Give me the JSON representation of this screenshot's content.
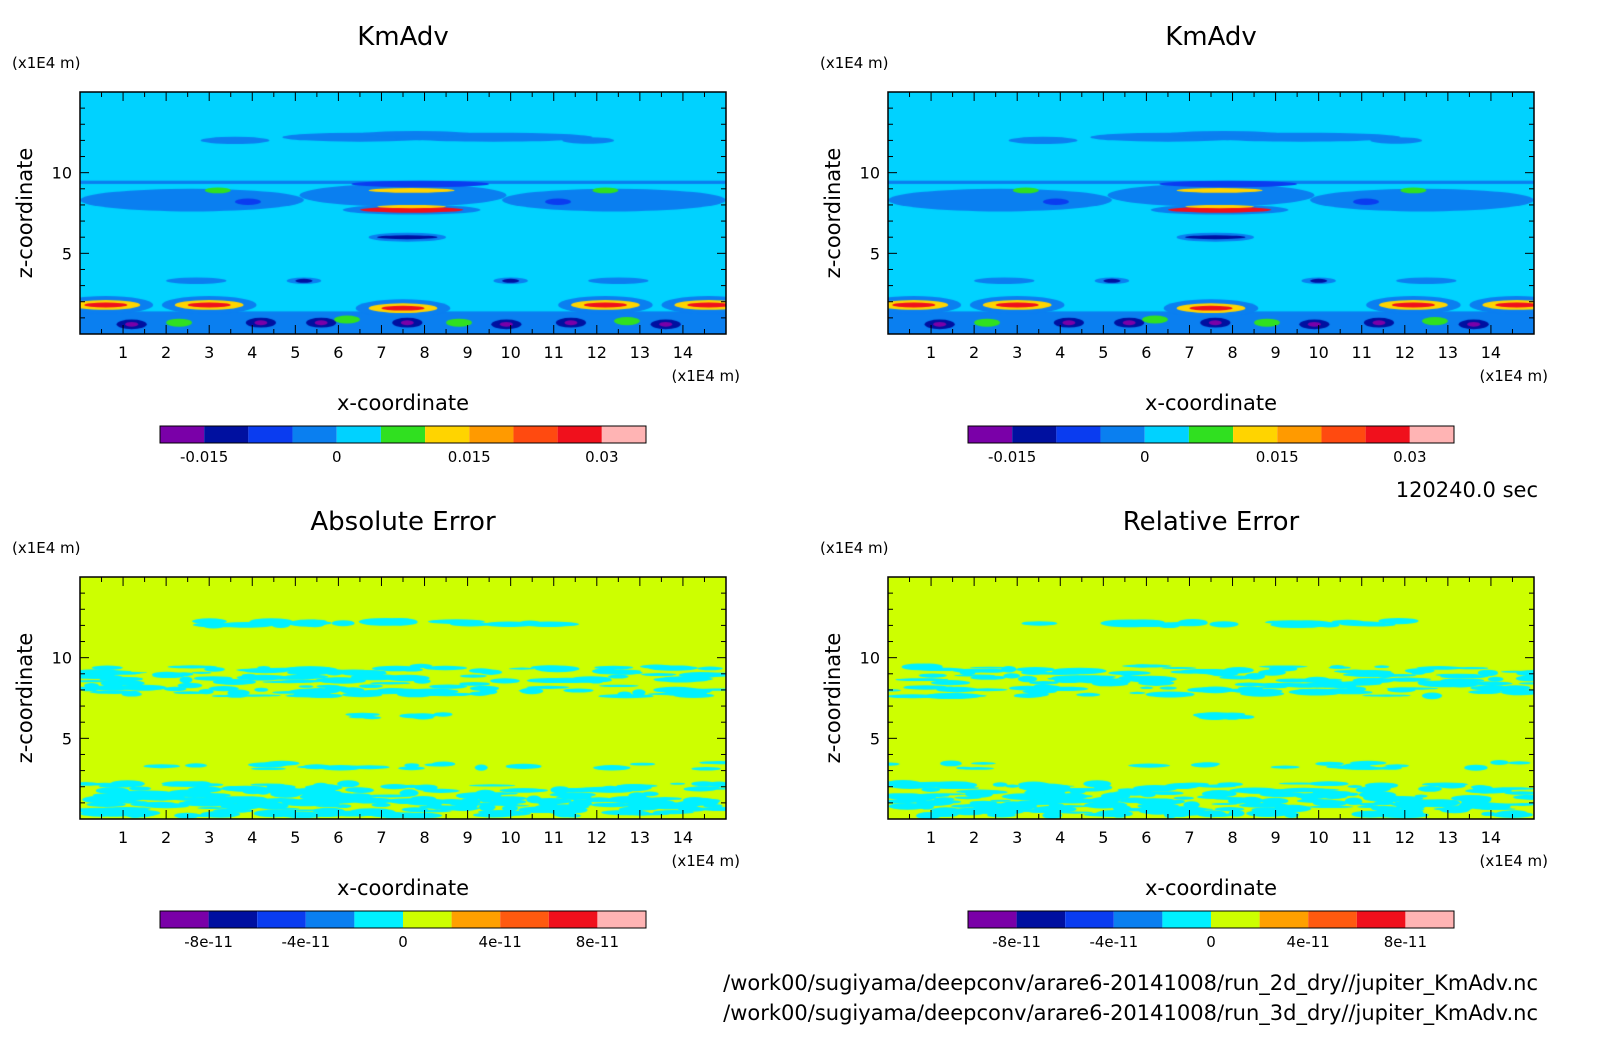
{
  "time_label": "120240.0 sec",
  "files": [
    "/work00/sugiyama/deepconv/arare6-20141008/run_2d_dry//jupiter_KmAdv.nc",
    "/work00/sugiyama/deepconv/arare6-20141008/run_3d_dry//jupiter_KmAdv.nc"
  ],
  "colors": {
    "fill_palette": [
      "#7a00a8",
      "#0010a0",
      "#0a3cf0",
      "#0a7ff0",
      "#00d2ff",
      "#30e020",
      "#ffd400",
      "#ff9a00",
      "#ff4a10",
      "#f0101c",
      "#ffb4b4"
    ],
    "error_palette": [
      "#7a00a8",
      "#0010a0",
      "#0a3cf0",
      "#0a7ff0",
      "#00f0ff",
      "#cdff00",
      "#ffa000",
      "#ff5a10",
      "#f0101c",
      "#ffb4b4"
    ]
  },
  "chart_data": [
    {
      "type": "heatmap",
      "title": "KmAdv",
      "xlabel": "x-coordinate",
      "ylabel": "z-coordinate",
      "x_unit": "(x1E4 m)",
      "y_unit": "(x1E4 m)",
      "xlim": [
        0,
        15
      ],
      "ylim": [
        0,
        15
      ],
      "xticks": [
        "1",
        "2",
        "3",
        "4",
        "5",
        "6",
        "7",
        "8",
        "9",
        "10",
        "11",
        "12",
        "13",
        "14"
      ],
      "yticks": [
        "5",
        "10"
      ],
      "colorbar": {
        "ticks": [
          "-0.015",
          "0",
          "0.015",
          "0.03"
        ],
        "tick_values": [
          -0.015,
          0,
          0.015,
          0.03
        ],
        "range": [
          -0.02,
          0.035
        ]
      }
    },
    {
      "type": "heatmap",
      "title": "KmAdv",
      "xlabel": "x-coordinate",
      "ylabel": "z-coordinate",
      "x_unit": "(x1E4 m)",
      "y_unit": "(x1E4 m)",
      "xlim": [
        0,
        15
      ],
      "ylim": [
        0,
        15
      ],
      "xticks": [
        "1",
        "2",
        "3",
        "4",
        "5",
        "6",
        "7",
        "8",
        "9",
        "10",
        "11",
        "12",
        "13",
        "14"
      ],
      "yticks": [
        "5",
        "10"
      ],
      "colorbar": {
        "ticks": [
          "-0.015",
          "0",
          "0.015",
          "0.03"
        ],
        "tick_values": [
          -0.015,
          0,
          0.015,
          0.03
        ],
        "range": [
          -0.02,
          0.035
        ]
      }
    },
    {
      "type": "heatmap",
      "title": "Absolute Error",
      "xlabel": "x-coordinate",
      "ylabel": "z-coordinate",
      "x_unit": "(x1E4 m)",
      "y_unit": "(x1E4 m)",
      "xlim": [
        0,
        15
      ],
      "ylim": [
        0,
        15
      ],
      "xticks": [
        "1",
        "2",
        "3",
        "4",
        "5",
        "6",
        "7",
        "8",
        "9",
        "10",
        "11",
        "12",
        "13",
        "14"
      ],
      "yticks": [
        "5",
        "10"
      ],
      "colorbar": {
        "ticks": [
          "-8e-11",
          "-4e-11",
          "0",
          "4e-11",
          "8e-11"
        ],
        "tick_values": [
          -8e-11,
          -4e-11,
          0,
          4e-11,
          8e-11
        ],
        "range": [
          -1e-10,
          1e-10
        ]
      }
    },
    {
      "type": "heatmap",
      "title": "Relative Error",
      "xlabel": "x-coordinate",
      "ylabel": "z-coordinate",
      "x_unit": "(x1E4 m)",
      "y_unit": "(x1E4 m)",
      "xlim": [
        0,
        15
      ],
      "ylim": [
        0,
        15
      ],
      "xticks": [
        "1",
        "2",
        "3",
        "4",
        "5",
        "6",
        "7",
        "8",
        "9",
        "10",
        "11",
        "12",
        "13",
        "14"
      ],
      "yticks": [
        "5",
        "10"
      ],
      "colorbar": {
        "ticks": [
          "-8e-11",
          "-4e-11",
          "0",
          "4e-11",
          "8e-11"
        ],
        "tick_values": [
          -8e-11,
          -4e-11,
          0,
          4e-11,
          8e-11
        ],
        "range": [
          -1e-10,
          1e-10
        ]
      }
    }
  ]
}
